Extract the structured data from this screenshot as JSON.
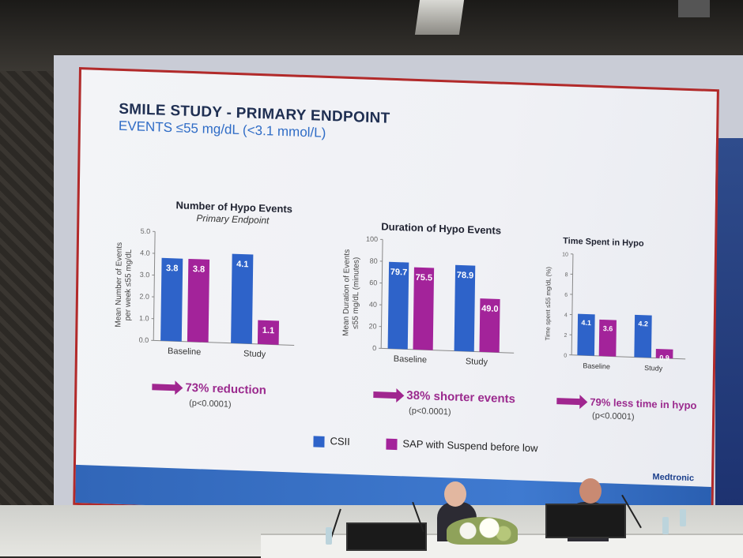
{
  "slide": {
    "title": "SMILE STUDY  -  PRIMARY ENDPOINT",
    "subtitle": "EVENTS ≤55 mg/dL (<3.1 mmol/L)",
    "logo": "Medtronic",
    "colors": {
      "csii": "#2e63c9",
      "sap": "#a3239a",
      "summary": "#9b2a8e",
      "footer": "#3166b8",
      "border": "#b22a2a"
    }
  },
  "panels": [
    {
      "title": "Number of Hypo Events",
      "subtitle": "Primary Endpoint",
      "ylabel_line1": "Mean Number of Events",
      "ylabel_line2": "per week ≤55 mg/dL",
      "yticks": [
        "5.0",
        "4.0",
        "3.0",
        "2.0",
        "1.0",
        "0.0"
      ],
      "categories": [
        "Baseline",
        "Study"
      ],
      "bar_labels": [
        "3.8",
        "3.8",
        "4.1",
        "1.1"
      ],
      "summary": "73% reduction",
      "pvalue": "(p<0.0001)"
    },
    {
      "title": "Duration of Hypo Events",
      "subtitle": "",
      "ylabel_line1": "Mean Duration of Events",
      "ylabel_line2": "≤55 mg/dL (minutes)",
      "yticks": [
        "100",
        "80",
        "60",
        "40",
        "20",
        "0"
      ],
      "categories": [
        "Baseline",
        "Study"
      ],
      "bar_labels": [
        "79.7",
        "75.5",
        "78.9",
        "49.0"
      ],
      "summary": "38% shorter events",
      "pvalue": "(p<0.0001)"
    },
    {
      "title": "Time Spent in Hypo",
      "subtitle": "",
      "ylabel_line1": "Time spent ≤55 mg/dL (%)",
      "ylabel_line2": "",
      "yticks": [
        "10",
        "8",
        "6",
        "4",
        "2",
        "0"
      ],
      "categories": [
        "Baseline",
        "Study"
      ],
      "bar_labels": [
        "4.1",
        "3.6",
        "4.2",
        "0.9"
      ],
      "summary": "79% less time in hypo",
      "pvalue": "(p<0.0001)"
    }
  ],
  "chart_data": [
    {
      "type": "bar",
      "title": "Number of Hypo Events",
      "subtitle": "Primary Endpoint",
      "ylabel": "Mean Number of Events per week ≤55 mg/dL",
      "categories": [
        "Baseline",
        "Study"
      ],
      "ylim": [
        0,
        5
      ],
      "series": [
        {
          "name": "CSII",
          "values": [
            3.8,
            4.1
          ]
        },
        {
          "name": "SAP with Suspend before low",
          "values": [
            3.8,
            1.1
          ]
        }
      ]
    },
    {
      "type": "bar",
      "title": "Duration of Hypo Events",
      "ylabel": "Mean Duration of Events ≤55 mg/dL (minutes)",
      "categories": [
        "Baseline",
        "Study"
      ],
      "ylim": [
        0,
        100
      ],
      "series": [
        {
          "name": "CSII",
          "values": [
            79.7,
            78.9
          ]
        },
        {
          "name": "SAP with Suspend before low",
          "values": [
            75.5,
            49.0
          ]
        }
      ]
    },
    {
      "type": "bar",
      "title": "Time Spent in Hypo",
      "ylabel": "Time spent ≤55 mg/dL (%)",
      "categories": [
        "Baseline",
        "Study"
      ],
      "ylim": [
        0,
        10
      ],
      "series": [
        {
          "name": "CSII",
          "values": [
            4.1,
            4.2
          ]
        },
        {
          "name": "SAP with Suspend before low",
          "values": [
            3.6,
            0.9
          ]
        }
      ]
    }
  ],
  "legend": {
    "csii_label": "CSII",
    "sap_label": "SAP with Suspend before low"
  }
}
